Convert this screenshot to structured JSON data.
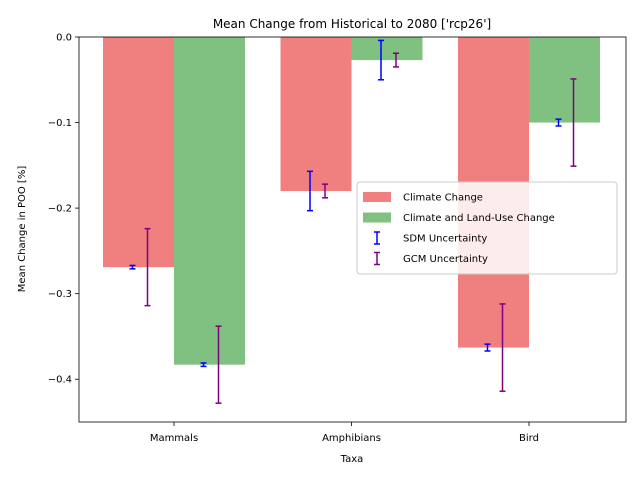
{
  "chart_data": {
    "type": "bar",
    "title": "Mean Change from Historical to 2080 ['rcp26']",
    "xlabel": "Taxa",
    "ylabel": "Mean Change in POO [%]",
    "categories": [
      "Mammals",
      "Amphibians",
      "Bird"
    ],
    "ylim": [
      -0.45,
      0.0
    ],
    "yticks": [
      0.0,
      -0.1,
      -0.2,
      -0.3,
      -0.4
    ],
    "ytick_labels": [
      "0.0",
      "−0.1",
      "−0.2",
      "−0.3",
      "−0.4"
    ],
    "grid": false,
    "legend_position": "center-right",
    "series": [
      {
        "name": "Climate Change",
        "color": "#f08080",
        "values": [
          -0.269,
          -0.18,
          -0.363
        ],
        "sdm_error": [
          0.002,
          0.023,
          0.004
        ],
        "gcm_error": [
          0.045,
          0.008,
          0.051
        ]
      },
      {
        "name": "Climate and Land-Use Change",
        "color": "#80c080",
        "values": [
          -0.383,
          -0.027,
          -0.1
        ],
        "sdm_error": [
          0.002,
          0.023,
          0.004
        ],
        "gcm_error": [
          0.045,
          0.008,
          0.051
        ]
      }
    ],
    "error_series": [
      {
        "name": "SDM Uncertainty",
        "color": "#0000ff"
      },
      {
        "name": "GCM Uncertainty",
        "color": "#800080"
      }
    ]
  }
}
